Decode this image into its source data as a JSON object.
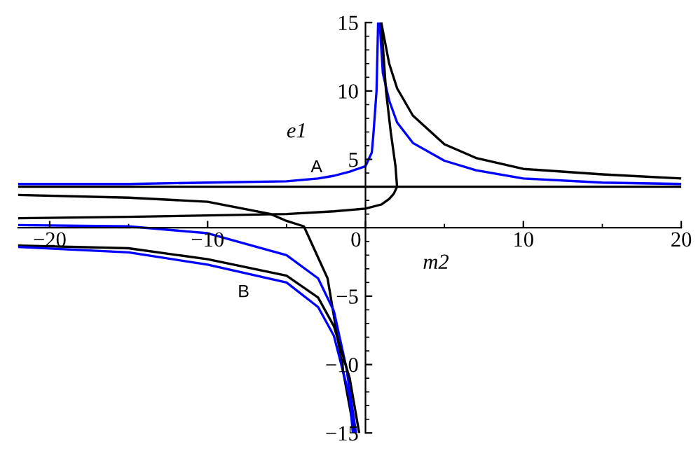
{
  "chart_data": {
    "type": "line",
    "xlabel": "m2",
    "ylabel": "e1",
    "xlim": [
      -22,
      20
    ],
    "ylim": [
      -15,
      15
    ],
    "xticks": [
      -20,
      -10,
      0,
      10,
      20
    ],
    "yticks": [
      -15,
      -10,
      -5,
      5,
      10,
      15
    ],
    "grid": false,
    "legend": false,
    "marker": "none",
    "line_style": "solid",
    "ref_lines": [
      {
        "axis": "y",
        "value": 3,
        "color": "#000000"
      }
    ],
    "annotations": [
      "A",
      "B"
    ],
    "series": [
      {
        "color": "#0000ff",
        "x": [
          -22,
          -15,
          -10,
          -5,
          -3,
          -2,
          -1,
          0,
          0.4,
          0.5,
          0.7,
          0.8
        ],
        "values": [
          3.2,
          3.2,
          3.3,
          3.4,
          3.6,
          3.8,
          4.1,
          4.5,
          5.5,
          6.8,
          10,
          15
        ]
      },
      {
        "color": "#0000ff",
        "x": [
          0.9,
          1.1,
          1.5,
          2,
          3,
          5,
          7,
          10,
          15,
          20
        ],
        "values": [
          15,
          11.3,
          9.3,
          7.7,
          6.2,
          4.9,
          4.2,
          3.6,
          3.3,
          3.2
        ]
      },
      {
        "color": "#000000",
        "x": [
          1.0,
          1.5,
          2,
          3,
          5,
          7,
          10,
          15,
          20
        ],
        "values": [
          15,
          12,
          10.2,
          8.2,
          6.1,
          5.1,
          4.3,
          3.9,
          3.6
        ]
      },
      {
        "color": "#000000",
        "x": [
          -22,
          -15,
          -10,
          -5,
          -2,
          0,
          1,
          1.5,
          1.8,
          2.0,
          1.9,
          1.6,
          1.3,
          1.0
        ],
        "values": [
          0.7,
          0.8,
          0.9,
          1.0,
          1.2,
          1.4,
          1.7,
          2.1,
          2.5,
          3.0,
          4.5,
          7,
          10,
          15
        ]
      },
      {
        "color": "#000000",
        "x": [
          -22,
          -15,
          -10,
          -6,
          -5,
          -3.9,
          -2.4,
          -1.4,
          -0.7
        ],
        "values": [
          2.4,
          2.2,
          1.9,
          1.0,
          0.5,
          0.1,
          -3.7,
          -10.6,
          -15
        ]
      },
      {
        "color": "#0000ff",
        "x": [
          -22,
          -15,
          -10,
          -5,
          -3,
          -2,
          -1.2,
          -0.6
        ],
        "values": [
          0.2,
          0.1,
          -0.4,
          -2.0,
          -3.7,
          -6.1,
          -10.3,
          -15
        ]
      },
      {
        "color": "#000000",
        "x": [
          -22,
          -15,
          -10,
          -5,
          -3,
          -2,
          -1,
          -0.4
        ],
        "values": [
          -1.3,
          -1.5,
          -2.3,
          -3.5,
          -5.1,
          -7.2,
          -11,
          -15
        ]
      },
      {
        "color": "#0000ff",
        "x": [
          -22,
          -15,
          -10,
          -5,
          -3,
          -2,
          -1,
          -0.8
        ],
        "values": [
          -1.4,
          -1.8,
          -2.7,
          -4.0,
          -5.8,
          -7.9,
          -12.4,
          -15
        ]
      }
    ]
  }
}
